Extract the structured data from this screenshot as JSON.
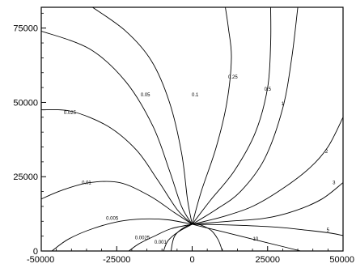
{
  "chart_data": {
    "type": "contour",
    "title": "",
    "xlabel": "",
    "ylabel": "",
    "xlim": [
      -50000,
      50000
    ],
    "ylim": [
      0,
      82000
    ],
    "x_ticks": [
      -50000,
      -25000,
      0,
      25000,
      50000
    ],
    "x_tick_labels": [
      "-50000",
      "-25000",
      "0",
      "25000",
      "50000"
    ],
    "y_ticks": [
      0,
      25000,
      50000,
      75000
    ],
    "y_tick_labels": [
      "0",
      "25000",
      "50000",
      "75000"
    ],
    "grid": false,
    "source_point": {
      "x": 0,
      "y": 9000
    },
    "contours": [
      {
        "level": "0.001",
        "label_at": [
          -10500,
          2400
        ],
        "points": [
          [
            0,
            9000
          ],
          [
            -4500,
            6500
          ],
          [
            -8000,
            3500
          ],
          [
            -9500,
            0
          ]
        ]
      },
      {
        "level": "0.0025",
        "label_at": [
          -16500,
          4000
        ],
        "points": [
          [
            0,
            9000
          ],
          [
            -7000,
            7500
          ],
          [
            -12500,
            5000
          ],
          [
            -17500,
            2500
          ],
          [
            -21000,
            0
          ]
        ]
      },
      {
        "level": "0.005",
        "label_at": [
          -26500,
          10500
        ],
        "points": [
          [
            0,
            9000
          ],
          [
            -8000,
            10500
          ],
          [
            -16000,
            10800
          ],
          [
            -24000,
            10000
          ],
          [
            -33000,
            7500
          ],
          [
            -41000,
            4000
          ],
          [
            -46500,
            0
          ]
        ]
      },
      {
        "level": "0.01",
        "label_at": [
          -35000,
          22500
        ],
        "points": [
          [
            0,
            9000
          ],
          [
            -6000,
            13000
          ],
          [
            -14000,
            18500
          ],
          [
            -24000,
            23000
          ],
          [
            -34000,
            23000
          ],
          [
            -43000,
            20500
          ],
          [
            -50000,
            17500
          ]
        ]
      },
      {
        "level": "0.025",
        "label_at": [
          -40500,
          46000
        ],
        "points": [
          [
            0,
            9000
          ],
          [
            -5000,
            14000
          ],
          [
            -11500,
            24000
          ],
          [
            -18500,
            34000
          ],
          [
            -28000,
            42000
          ],
          [
            -40000,
            47000
          ],
          [
            -50000,
            47500
          ]
        ]
      },
      {
        "level": "0.05",
        "label_at": [
          -15500,
          52000
        ],
        "points": [
          [
            0,
            9000
          ],
          [
            -3500,
            15000
          ],
          [
            -7500,
            27000
          ],
          [
            -13000,
            42000
          ],
          [
            -22000,
            57000
          ],
          [
            -34000,
            68000
          ],
          [
            -50000,
            74000
          ]
        ]
      },
      {
        "level": "0.1",
        "label_at": [
          1000,
          52000
        ],
        "points": [
          [
            0,
            9000
          ],
          [
            -1500,
            17000
          ],
          [
            -3500,
            33000
          ],
          [
            -7500,
            50000
          ],
          [
            -13500,
            64000
          ],
          [
            -22000,
            74000
          ],
          [
            -33000,
            82000
          ]
        ]
      },
      {
        "level": "0.25",
        "label_at": [
          13500,
          58000
        ],
        "points": [
          [
            0,
            9000
          ],
          [
            3000,
            20000
          ],
          [
            8000,
            35000
          ],
          [
            11500,
            50000
          ],
          [
            13000,
            65000
          ],
          [
            12000,
            75000
          ],
          [
            11000,
            82000
          ]
        ]
      },
      {
        "level": "0.5",
        "label_at": [
          25000,
          54000
        ],
        "points": [
          [
            0,
            9000
          ],
          [
            6000,
            17000
          ],
          [
            14000,
            27000
          ],
          [
            21000,
            40000
          ],
          [
            25000,
            55000
          ],
          [
            26000,
            70000
          ],
          [
            26000,
            82000
          ]
        ]
      },
      {
        "level": "1",
        "label_at": [
          30000,
          49000
        ],
        "points": [
          [
            0,
            9000
          ],
          [
            8000,
            14000
          ],
          [
            16000,
            20000
          ],
          [
            24000,
            31000
          ],
          [
            30000,
            48000
          ],
          [
            33000,
            65000
          ],
          [
            35000,
            82000
          ]
        ]
      },
      {
        "level": "2",
        "label_at": [
          44500,
          33000
        ],
        "points": [
          [
            0,
            9000
          ],
          [
            10000,
            11500
          ],
          [
            20000,
            15000
          ],
          [
            30000,
            21000
          ],
          [
            39000,
            28000
          ],
          [
            45000,
            35000
          ],
          [
            50000,
            45000
          ]
        ]
      },
      {
        "level": "3",
        "label_at": [
          47000,
          22500
        ],
        "points": [
          [
            0,
            9000
          ],
          [
            12000,
            10000
          ],
          [
            24000,
            11000
          ],
          [
            34000,
            13500
          ],
          [
            43000,
            17500
          ],
          [
            50000,
            23000
          ]
        ]
      },
      {
        "level": "5",
        "label_at": [
          45000,
          6500
        ],
        "points": [
          [
            0,
            9000
          ],
          [
            14000,
            8700
          ],
          [
            28000,
            8000
          ],
          [
            38000,
            7000
          ],
          [
            46000,
            6000
          ],
          [
            50000,
            5200
          ]
        ]
      },
      {
        "level": "10",
        "label_at": [
          21000,
          3500
        ],
        "points": [
          [
            0,
            9000
          ],
          [
            10000,
            6500
          ],
          [
            20000,
            4000
          ],
          [
            30000,
            1500
          ],
          [
            36000,
            0
          ]
        ]
      }
    ],
    "near_source_closed_curve": {
      "points": [
        [
          -7000,
          0
        ],
        [
          -5500,
          5500
        ],
        [
          0,
          9000
        ],
        [
          5500,
          7500
        ],
        [
          8500,
          4000
        ],
        [
          10000,
          0
        ]
      ]
    }
  }
}
